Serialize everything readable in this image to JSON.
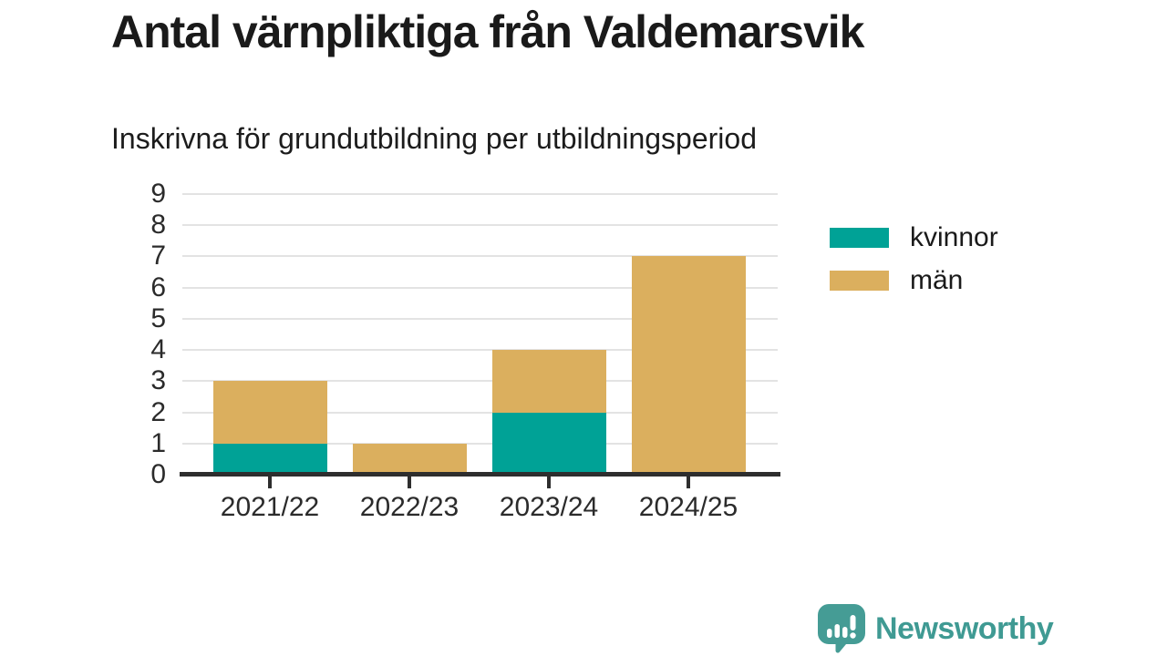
{
  "header": {
    "title": "Antal värnpliktiga från Valdemarsvik",
    "subtitle": "Inskrivna för grundutbildning per utbildningsperiod"
  },
  "chart_data": {
    "type": "bar",
    "stacked": true,
    "title": "Antal värnpliktiga från Valdemarsvik",
    "subtitle": "Inskrivna för grundutbildning per utbildningsperiod",
    "categories": [
      "2021/22",
      "2022/23",
      "2023/24",
      "2024/25"
    ],
    "series": [
      {
        "name": "kvinnor",
        "color": "#00A296",
        "values": [
          1,
          0,
          2,
          0
        ]
      },
      {
        "name": "män",
        "color": "#DBAF5E",
        "values": [
          2,
          1,
          2,
          7
        ]
      }
    ],
    "totals": [
      3,
      1,
      4,
      7
    ],
    "xlabel": "",
    "ylabel": "",
    "ylim": [
      0,
      9
    ],
    "yticks": [
      0,
      1,
      2,
      3,
      4,
      5,
      6,
      7,
      8,
      9
    ],
    "grid": true,
    "legend_position": "right"
  },
  "footer": {
    "brand": "Newsworthy"
  },
  "colors": {
    "axis": "#2e2e2e",
    "grid": "#e3e3e3",
    "text": "#1a1a1a",
    "tick_text": "#2b2b2b",
    "brand_teal": "#3F9A93",
    "background": "#ffffff"
  }
}
